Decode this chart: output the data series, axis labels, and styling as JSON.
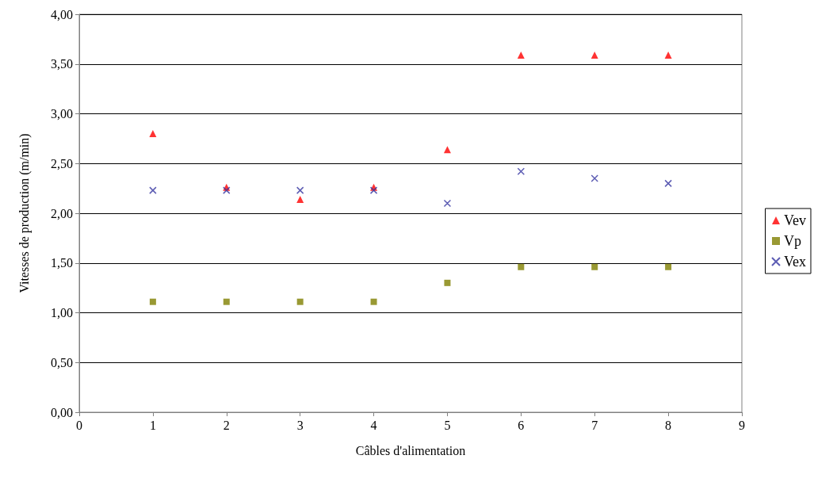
{
  "chart_data": {
    "type": "scatter",
    "xlabel": "Câbles d'alimentation",
    "ylabel": "Vitesses de production (m/min)",
    "x": [
      1,
      2,
      3,
      4,
      5,
      6,
      7,
      8
    ],
    "series": [
      {
        "name": "Vev",
        "color": "#ff0000",
        "marker": "triangle",
        "values": [
          2.8,
          2.26,
          2.14,
          2.26,
          2.64,
          3.59,
          3.59,
          3.59
        ]
      },
      {
        "name": "Vp",
        "color": "#808000",
        "marker": "square",
        "values": [
          1.11,
          1.11,
          1.11,
          1.11,
          1.3,
          1.46,
          1.46,
          1.46
        ]
      },
      {
        "name": "Vex",
        "color": "#3333a0",
        "marker": "cross",
        "values": [
          2.23,
          2.23,
          2.23,
          2.23,
          2.1,
          2.42,
          2.35,
          2.3
        ]
      }
    ],
    "xlim": [
      0,
      9
    ],
    "xticks": [
      0,
      1,
      2,
      3,
      4,
      5,
      6,
      7,
      8,
      9
    ],
    "ylim": [
      0,
      4
    ],
    "yticks": [
      {
        "value": 0,
        "label": "0,00"
      },
      {
        "value": 0.5,
        "label": "0,50"
      },
      {
        "value": 1,
        "label": "1,00"
      },
      {
        "value": 1.5,
        "label": "1,50"
      },
      {
        "value": 2,
        "label": "2,00"
      },
      {
        "value": 2.5,
        "label": "2,50"
      },
      {
        "value": 3,
        "label": "3,00"
      },
      {
        "value": 3.5,
        "label": "3,50"
      },
      {
        "value": 4,
        "label": "4,00"
      }
    ],
    "grid": "y",
    "legend": "right"
  }
}
